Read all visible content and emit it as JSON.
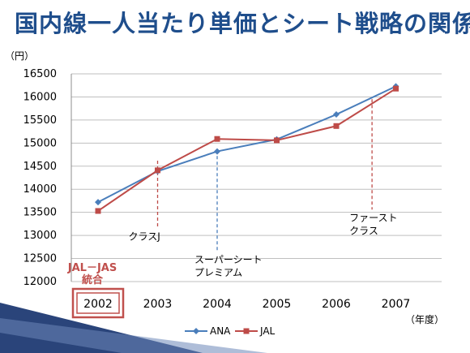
{
  "slide": {
    "title": "国内線一人当たり単価とシート戦略の関係"
  },
  "colors": {
    "title": "#1f4e8c",
    "ana": "#4a7ebb",
    "jal": "#be4b48",
    "highlight": "#c0504d",
    "grid": "#bfbfbf",
    "decor": "#1f3a73"
  },
  "chart_data": {
    "type": "line",
    "x": [
      "2002",
      "2003",
      "2004",
      "2005",
      "2006",
      "2007"
    ],
    "ylim": [
      12000,
      16500
    ],
    "yticks": [
      12000,
      12500,
      13000,
      13500,
      14000,
      14500,
      15000,
      15500,
      16000,
      16500
    ],
    "yunit": "（円）",
    "xunit": "（年度）",
    "grid": true,
    "legend_position": "bottom",
    "series": [
      {
        "name": "ANA",
        "color": "#4a7ebb",
        "marker": "diamond",
        "values": [
          13720,
          14390,
          14820,
          15080,
          15620,
          16230
        ]
      },
      {
        "name": "JAL",
        "color": "#be4b48",
        "marker": "square",
        "values": [
          13530,
          14410,
          15090,
          15060,
          15370,
          16180
        ]
      }
    ],
    "annotations": [
      {
        "id": "class-j",
        "lines": [
          "クラスJ"
        ],
        "x": "2003",
        "y_from": 13150,
        "y_to": 14620,
        "series": "JAL",
        "color": "#be4b48"
      },
      {
        "id": "super-seat",
        "lines": [
          "スーパーシート",
          "プレミアム"
        ],
        "x": "2004",
        "y_from": 12650,
        "y_to": 14720,
        "series": "ANA",
        "color": "#4a7ebb"
      },
      {
        "id": "first-class",
        "lines": [
          "ファースト",
          "クラス"
        ],
        "x": "2007",
        "y_from": 13560,
        "y_to": 15950,
        "series": "JAL",
        "color": "#be4b48",
        "x_offset": -0.4
      }
    ],
    "highlight": {
      "x": "2002",
      "lines": [
        "JAL－JAS",
        "統合"
      ]
    }
  }
}
